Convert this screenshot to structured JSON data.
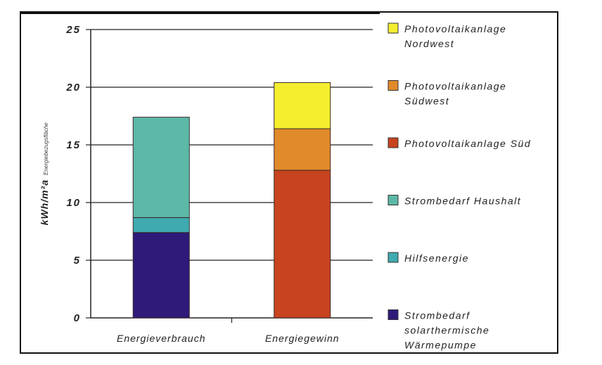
{
  "chart_data": {
    "type": "bar",
    "stacked": true,
    "categories": [
      "Energieverbrauch",
      "Energiegewinn"
    ],
    "ylabel": "kWh/m²a",
    "ylabel_sub": "Energiebezugsfläche",
    "ylim": [
      0,
      25
    ],
    "yticks": [
      0,
      5,
      10,
      15,
      20,
      25
    ],
    "grid": true,
    "legend_position": "right",
    "series": [
      {
        "name": "Strombedarf solarthermische Wärmepumpe",
        "legend_lines": [
          "Strombedarf",
          "solarthermische",
          "Wärmepumpe"
        ],
        "color": "#2e1a78",
        "values": [
          7.4,
          0
        ]
      },
      {
        "name": "Hilfsenergie",
        "legend_lines": [
          "Hilfsenergie"
        ],
        "color": "#3faab0",
        "values": [
          1.3,
          0
        ]
      },
      {
        "name": "Strombedarf Haushalt",
        "legend_lines": [
          "Strombedarf Haushalt"
        ],
        "color": "#5db8a8",
        "values": [
          8.7,
          0
        ]
      },
      {
        "name": "Photovoltaikanlage Süd",
        "legend_lines": [
          "Photovoltaikanlage Süd"
        ],
        "color": "#c8431f",
        "values": [
          0,
          12.8
        ]
      },
      {
        "name": "Photovoltaikanlage Südwest",
        "legend_lines": [
          "Photovoltaikanlage",
          "Südwest"
        ],
        "color": "#e08a2a",
        "values": [
          0,
          3.6
        ]
      },
      {
        "name": "Photovoltaikanlage Nordwest",
        "legend_lines": [
          "Photovoltaikanlage",
          "Nordwest"
        ],
        "color": "#f4ee2e",
        "values": [
          0,
          4.0
        ]
      }
    ],
    "legend_order": [
      5,
      4,
      3,
      2,
      1,
      0
    ]
  }
}
